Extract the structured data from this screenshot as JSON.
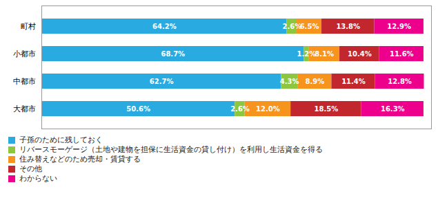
{
  "chart_data": {
    "type": "bar",
    "orientation": "horizontal",
    "stacked": true,
    "categories": [
      "大都市",
      "中都市",
      "小都市",
      "町村"
    ],
    "series": [
      {
        "name": "子孫のために残しておく",
        "color": "#29ABE2",
        "values": [
          50.6,
          62.7,
          68.7,
          64.2
        ],
        "value_labels": [
          "50.6%",
          "62.7%",
          "68.7%",
          "64.2%"
        ]
      },
      {
        "name": "リバースモーゲージ（土地や建物を担保に生活資金の貸し付け）を利用し生活資金を得る",
        "color": "#8DC63F",
        "values": [
          2.6,
          4.3,
          1.2,
          2.6
        ],
        "value_labels": [
          "2.6%",
          "4.3%",
          "1.2%",
          "2.6%"
        ]
      },
      {
        "name": "住み替えなどのため売却・賃貸する",
        "color": "#F7941D",
        "values": [
          12.0,
          8.9,
          8.1,
          6.5
        ],
        "value_labels": [
          "12.0%",
          "8.9%",
          "8.1%",
          "6.5%"
        ]
      },
      {
        "name": "その他",
        "color": "#C1272D",
        "values": [
          18.5,
          11.4,
          10.4,
          13.8
        ],
        "value_labels": [
          "18.5%",
          "11.4%",
          "10.4%",
          "13.8%"
        ]
      },
      {
        "name": "わからない",
        "color": "#EC008C",
        "values": [
          16.3,
          12.8,
          11.6,
          12.9
        ],
        "value_labels": [
          "16.3%",
          "12.8%",
          "11.6%",
          "12.9%"
        ]
      }
    ],
    "xlim": [
      0,
      102
    ],
    "data_labels": true,
    "tick_labels": "y",
    "legend": "bottom",
    "grid": false
  }
}
